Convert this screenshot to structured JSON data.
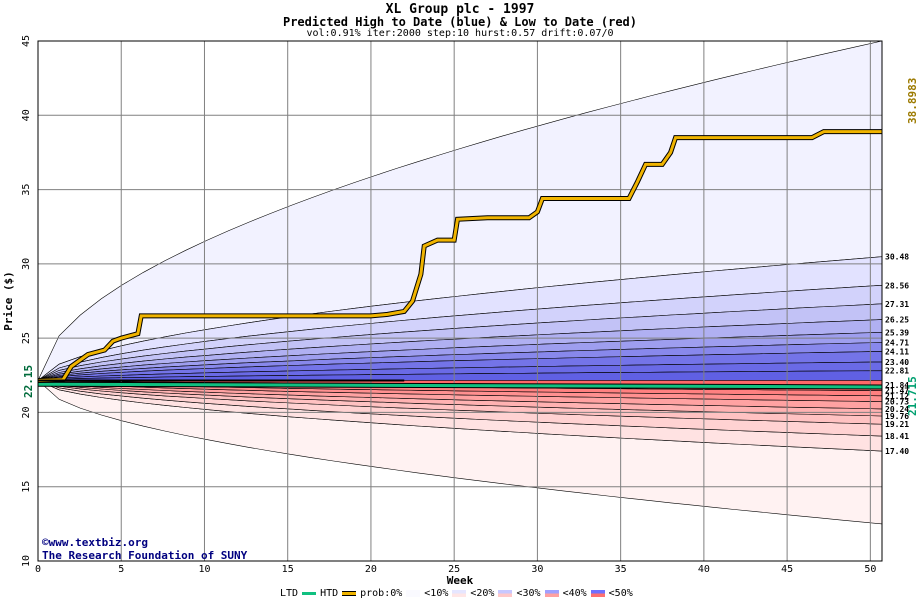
{
  "title": "XL Group plc - 1997",
  "subtitle": "Predicted High to Date (blue) &  Low to Date (red)",
  "params": "vol:0.91% iter:2000 step:10 hurst:0.57 drift:0.07/0",
  "credit": {
    "line1": "©www.textbiz.org",
    "line2": "The Research Foundation of SUNY"
  },
  "current_price_label": "22.15",
  "final_high_label": "38.8983",
  "final_low_label": "21.715",
  "colors": {
    "high_path": "#f0b400",
    "low_path": "#10c080",
    "blue_band": "#4040ff",
    "red_band": "#ff5050",
    "grid": "#808080"
  },
  "legend": {
    "ltd": "LTD",
    "htd": "HTD",
    "prob": "prob:0%",
    "bands": [
      "<10%",
      "<20%",
      "<30%",
      "<40%",
      "<50%"
    ]
  },
  "chart_data": {
    "type": "area",
    "xlabel": "Week",
    "ylabel": "Price ($)",
    "xlim": [
      0,
      50.7
    ],
    "ylim": [
      10,
      45
    ],
    "x_ticks": [
      0,
      5,
      10,
      15,
      20,
      25,
      30,
      35,
      40,
      45,
      50
    ],
    "y_ticks": [
      10,
      15,
      20,
      25,
      30,
      35,
      40,
      45
    ],
    "grid": true,
    "start_price": 22.15,
    "high_quantiles_end": [
      30.48,
      28.56,
      27.31,
      26.25,
      25.39,
      24.71,
      24.11,
      23.4,
      22.81
    ],
    "low_quantiles_end": [
      21.84,
      21.47,
      21.12,
      20.73,
      20.24,
      19.76,
      19.21,
      18.41,
      17.4
    ],
    "outer_envelope": {
      "upper_end": 45.0,
      "lower_end": 12.5
    },
    "high_to_date_path": {
      "x": [
        0,
        1.5,
        2,
        3,
        4,
        4.5,
        5,
        6,
        6.2,
        8,
        10,
        15,
        20,
        21,
        22,
        22.5,
        23,
        23.2,
        24,
        25,
        25.2,
        27,
        29.5,
        30,
        30.3,
        33,
        35.5,
        36,
        36.5,
        37.5,
        38,
        38.3,
        40,
        45,
        46.5,
        47.2,
        50.7
      ],
      "y": [
        22.15,
        22.2,
        23.1,
        23.9,
        24.2,
        24.8,
        25.0,
        25.3,
        26.5,
        26.5,
        26.5,
        26.5,
        26.5,
        26.6,
        26.8,
        27.5,
        29.3,
        31.2,
        31.6,
        31.6,
        33.0,
        33.1,
        33.1,
        33.5,
        34.4,
        34.4,
        34.4,
        35.5,
        36.7,
        36.7,
        37.5,
        38.5,
        38.5,
        38.5,
        38.5,
        38.9,
        38.9
      ]
    },
    "low_to_date_path": {
      "x": [
        0,
        50.7
      ],
      "y": [
        21.9,
        21.715
      ]
    }
  }
}
